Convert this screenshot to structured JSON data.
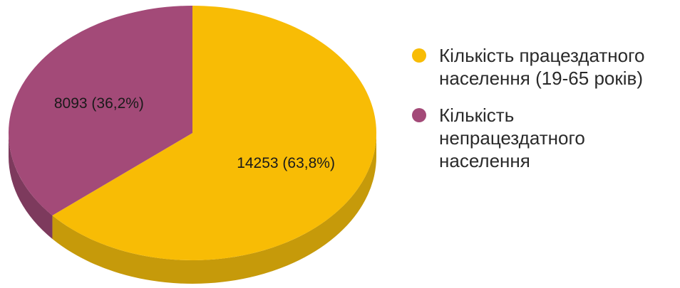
{
  "chart_data": {
    "type": "pie",
    "three_d": true,
    "slices": [
      {
        "name": "Кількість працездатного населення (19-65 років)",
        "value": 14253,
        "percent": 63.8,
        "label": "14253 (63,8%)",
        "color": "#F8BC05",
        "side_color": "#C69A0A"
      },
      {
        "name": "Кількість непрацездатного населення",
        "value": 8093,
        "percent": 36.2,
        "label": "8093 (36,2%)",
        "color": "#A34A78",
        "side_color": "#7D3A5D"
      }
    ],
    "legend_position": "right"
  },
  "legend": {
    "items": [
      {
        "lines": [
          "Кількість працездатного",
          "населення (19-65 років)"
        ],
        "color": "#F8BC05"
      },
      {
        "lines": [
          "Кількість",
          "непрацездатного",
          "населення"
        ],
        "color": "#A34A78"
      }
    ]
  }
}
